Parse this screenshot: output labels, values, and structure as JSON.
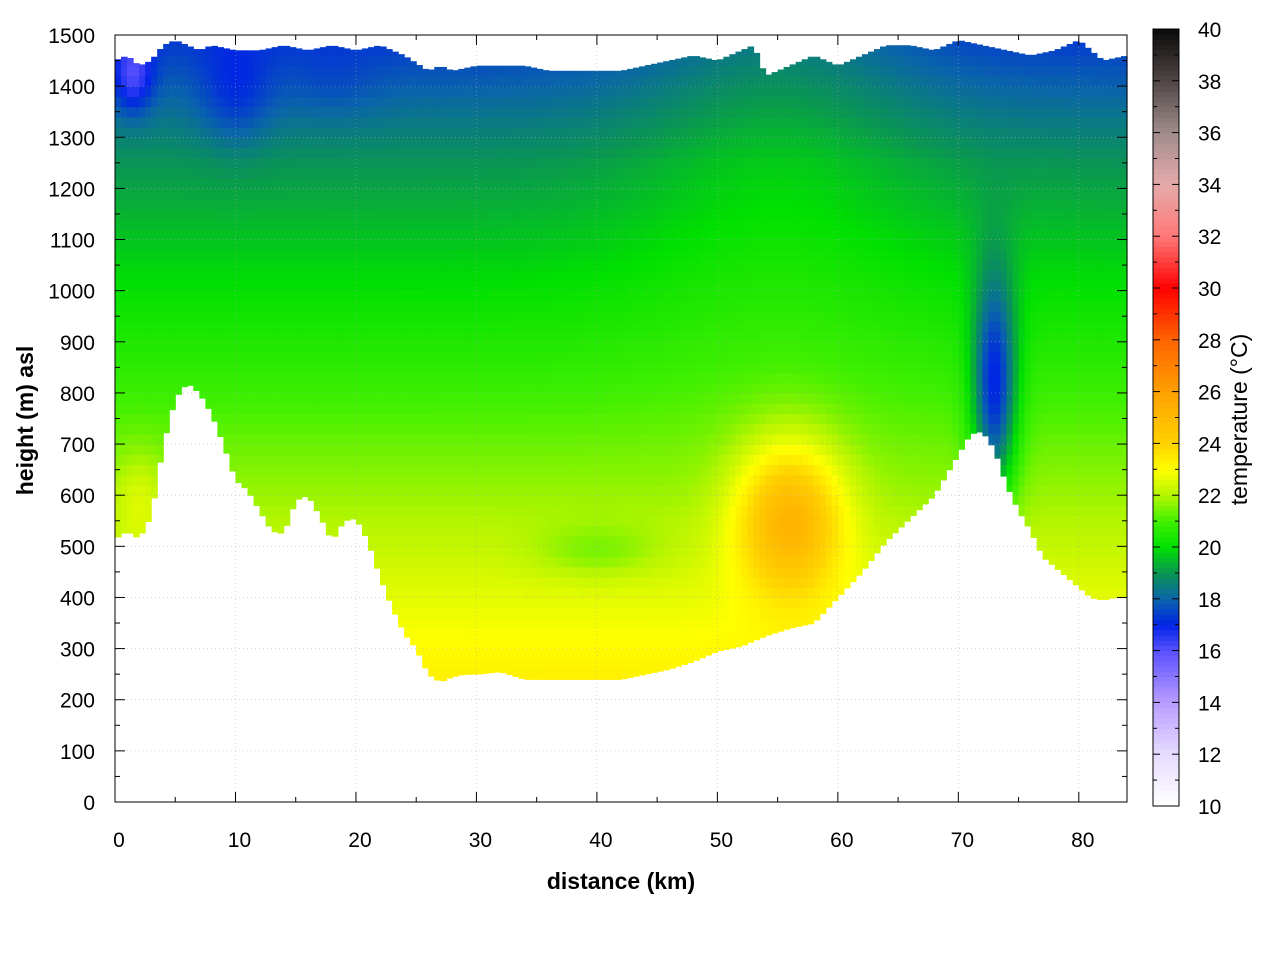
{
  "chart_data": {
    "type": "heatmap",
    "title": "",
    "xlabel": "distance (km)",
    "ylabel": "height (m) asl",
    "colorbar_label": "temperature (°C)",
    "xlim": [
      0,
      84
    ],
    "ylim": [
      0,
      1500
    ],
    "x_ticks": [
      0,
      10,
      20,
      30,
      40,
      50,
      60,
      70,
      80
    ],
    "y_ticks": [
      0,
      100,
      200,
      300,
      400,
      500,
      600,
      700,
      800,
      900,
      1000,
      1100,
      1200,
      1300,
      1400,
      1500
    ],
    "colorbar_range": [
      10,
      40
    ],
    "colorbar_ticks": [
      10,
      12,
      14,
      16,
      18,
      20,
      22,
      24,
      26,
      28,
      30,
      32,
      34,
      36,
      38,
      40
    ],
    "grid": true,
    "legend": "colorbar-right",
    "terrain_profile": {
      "x": [
        0,
        1,
        2,
        3,
        4,
        5,
        6,
        7,
        8,
        9,
        10,
        11,
        12,
        13,
        14,
        15,
        16,
        17,
        18,
        19,
        20,
        21,
        22,
        23,
        24,
        25,
        26,
        27,
        28,
        29,
        30,
        32,
        34,
        36,
        38,
        40,
        42,
        44,
        46,
        48,
        50,
        51,
        52,
        54,
        56,
        58,
        60,
        62,
        64,
        66,
        68,
        70,
        71,
        72,
        73,
        74,
        75,
        76,
        77,
        78,
        79,
        80,
        81,
        82,
        83,
        84
      ],
      "y": [
        515,
        530,
        515,
        560,
        700,
        790,
        820,
        800,
        760,
        700,
        630,
        610,
        570,
        530,
        525,
        590,
        600,
        560,
        510,
        550,
        555,
        510,
        440,
        380,
        330,
        300,
        250,
        235,
        245,
        250,
        250,
        255,
        240,
        240,
        240,
        240,
        240,
        250,
        260,
        275,
        295,
        300,
        305,
        325,
        340,
        350,
        400,
        450,
        510,
        555,
        600,
        680,
        720,
        725,
        690,
        620,
        570,
        530,
        480,
        460,
        440,
        420,
        400,
        395,
        400,
        400
      ]
    },
    "top_boundary": {
      "x": [
        0,
        1,
        2,
        3,
        4,
        5,
        6,
        7,
        8,
        10,
        12,
        14,
        16,
        18,
        20,
        22,
        24,
        26,
        27,
        28,
        30,
        32,
        34,
        36,
        38,
        40,
        42,
        44,
        46,
        48,
        50,
        52,
        53,
        54,
        56,
        58,
        60,
        62,
        64,
        66,
        68,
        70,
        72,
        74,
        76,
        78,
        80,
        82,
        84
      ],
      "y": [
        1450,
        1460,
        1440,
        1450,
        1480,
        1490,
        1480,
        1470,
        1480,
        1470,
        1470,
        1480,
        1470,
        1480,
        1470,
        1480,
        1460,
        1430,
        1440,
        1430,
        1440,
        1440,
        1440,
        1430,
        1430,
        1430,
        1430,
        1440,
        1450,
        1460,
        1450,
        1470,
        1480,
        1420,
        1440,
        1460,
        1440,
        1460,
        1480,
        1480,
        1470,
        1490,
        1480,
        1470,
        1460,
        1470,
        1490,
        1450,
        1460
      ]
    },
    "temperature_features": [
      {
        "x": 1.5,
        "y": 1420,
        "temp": 16.5,
        "sx": 1.6,
        "sy": 70
      },
      {
        "x": 10,
        "y": 1380,
        "temp": 17.5,
        "sx": 3,
        "sy": 100
      },
      {
        "x": 18,
        "y": 1400,
        "temp": 18,
        "sx": 4,
        "sy": 80
      },
      {
        "x": 28,
        "y": 1420,
        "temp": 18.2,
        "sx": 4,
        "sy": 60
      },
      {
        "x": 73,
        "y": 800,
        "temp": 17,
        "sx": 1.8,
        "sy": 220
      },
      {
        "x": 56,
        "y": 560,
        "temp": 25.2,
        "sx": 4.5,
        "sy": 150
      },
      {
        "x": 40,
        "y": 490,
        "temp": 21.5,
        "sx": 5,
        "sy": 50
      },
      {
        "x": 2,
        "y": 600,
        "temp": 22.5,
        "sx": 2,
        "sy": 90
      }
    ]
  },
  "colorbar_colors": [
    {
      "t": 10,
      "c": "#ffffff"
    },
    {
      "t": 12,
      "c": "#e6dcff"
    },
    {
      "t": 14,
      "c": "#b89cff"
    },
    {
      "t": 16,
      "c": "#5a50ff"
    },
    {
      "t": 17,
      "c": "#0024e6"
    },
    {
      "t": 18,
      "c": "#0a64aa"
    },
    {
      "t": 19,
      "c": "#0a9652"
    },
    {
      "t": 20,
      "c": "#00e000"
    },
    {
      "t": 21,
      "c": "#40f000"
    },
    {
      "t": 22,
      "c": "#b4f500"
    },
    {
      "t": 23,
      "c": "#ffff00"
    },
    {
      "t": 24,
      "c": "#ffd200"
    },
    {
      "t": 26,
      "c": "#ffa000"
    },
    {
      "t": 28,
      "c": "#ff6400"
    },
    {
      "t": 30,
      "c": "#ff0000"
    },
    {
      "t": 32,
      "c": "#ff7878"
    },
    {
      "t": 34,
      "c": "#e6aaaa"
    },
    {
      "t": 36,
      "c": "#a08c8c"
    },
    {
      "t": 38,
      "c": "#504646"
    },
    {
      "t": 40,
      "c": "#0a0a0a"
    }
  ]
}
